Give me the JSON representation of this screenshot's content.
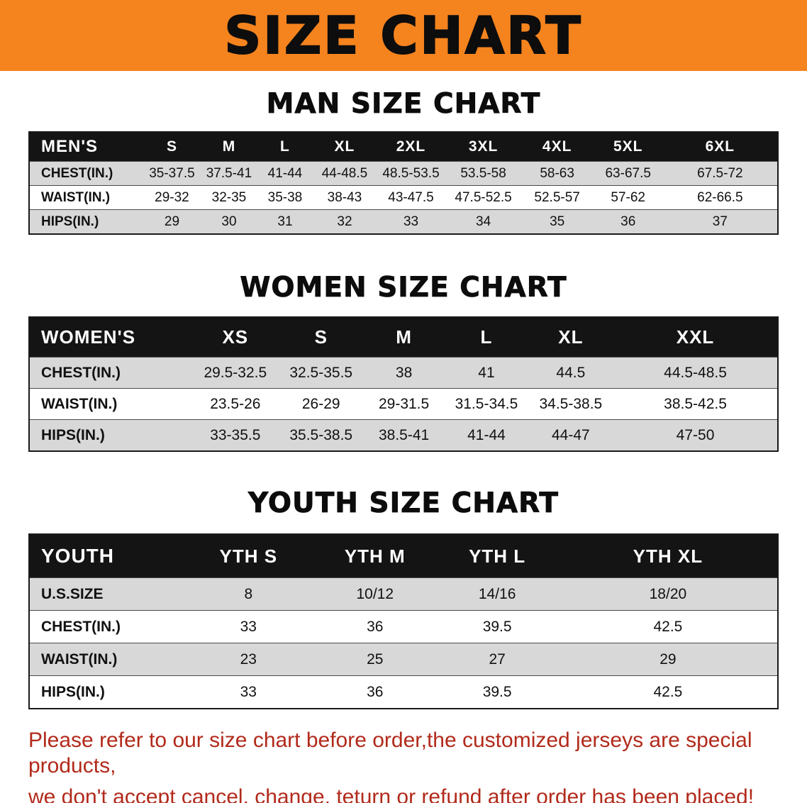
{
  "banner": {
    "title": "SIZE CHART"
  },
  "colors": {
    "banner_bg": "#f5831e",
    "table_header_bg": "#141414",
    "table_header_text": "#ffffff",
    "row_stripe": "#d8d8d8",
    "footer_text": "#b22a1b"
  },
  "sections": {
    "men": {
      "heading": "MAN SIZE CHART",
      "table": {
        "header": [
          "MEN'S",
          "S",
          "M",
          "L",
          "XL",
          "2XL",
          "3XL",
          "4XL",
          "5XL",
          "6XL"
        ],
        "rows": [
          [
            "CHEST(IN.)",
            "35-37.5",
            "37.5-41",
            "41-44",
            "44-48.5",
            "48.5-53.5",
            "53.5-58",
            "58-63",
            "63-67.5",
            "67.5-72"
          ],
          [
            "WAIST(IN.)",
            "29-32",
            "32-35",
            "35-38",
            "38-43",
            "43-47.5",
            "47.5-52.5",
            "52.5-57",
            "57-62",
            "62-66.5"
          ],
          [
            "HIPS(IN.)",
            "29",
            "30",
            "31",
            "32",
            "33",
            "34",
            "35",
            "36",
            "37"
          ]
        ]
      }
    },
    "women": {
      "heading": "WOMEN SIZE CHART",
      "table": {
        "header": [
          "WOMEN'S",
          "XS",
          "S",
          "M",
          "L",
          "XL",
          "XXL"
        ],
        "rows": [
          [
            "CHEST(IN.)",
            "29.5-32.5",
            "32.5-35.5",
            "38",
            "41",
            "44.5",
            "44.5-48.5"
          ],
          [
            "WAIST(IN.)",
            "23.5-26",
            "26-29",
            "29-31.5",
            "31.5-34.5",
            "34.5-38.5",
            "38.5-42.5"
          ],
          [
            "HIPS(IN.)",
            "33-35.5",
            "35.5-38.5",
            "38.5-41",
            "41-44",
            "44-47",
            "47-50"
          ]
        ]
      }
    },
    "youth": {
      "heading": "YOUTH SIZE CHART",
      "table": {
        "header": [
          "YOUTH",
          "YTH S",
          "YTH M",
          "YTH L",
          "YTH XL"
        ],
        "rows": [
          [
            "U.S.SIZE",
            "8",
            "10/12",
            "14/16",
            "18/20"
          ],
          [
            "CHEST(IN.)",
            "33",
            "36",
            "39.5",
            "42.5"
          ],
          [
            "WAIST(IN.)",
            "23",
            "25",
            "27",
            "29"
          ],
          [
            "HIPS(IN.)",
            "33",
            "36",
            "39.5",
            "42.5"
          ]
        ]
      }
    }
  },
  "footer": {
    "line1": "Please refer to our size chart before order,the customized jerseys are special products,",
    "line2": "we don't accept cancel, change, teturn or refund after order has been placed!"
  }
}
